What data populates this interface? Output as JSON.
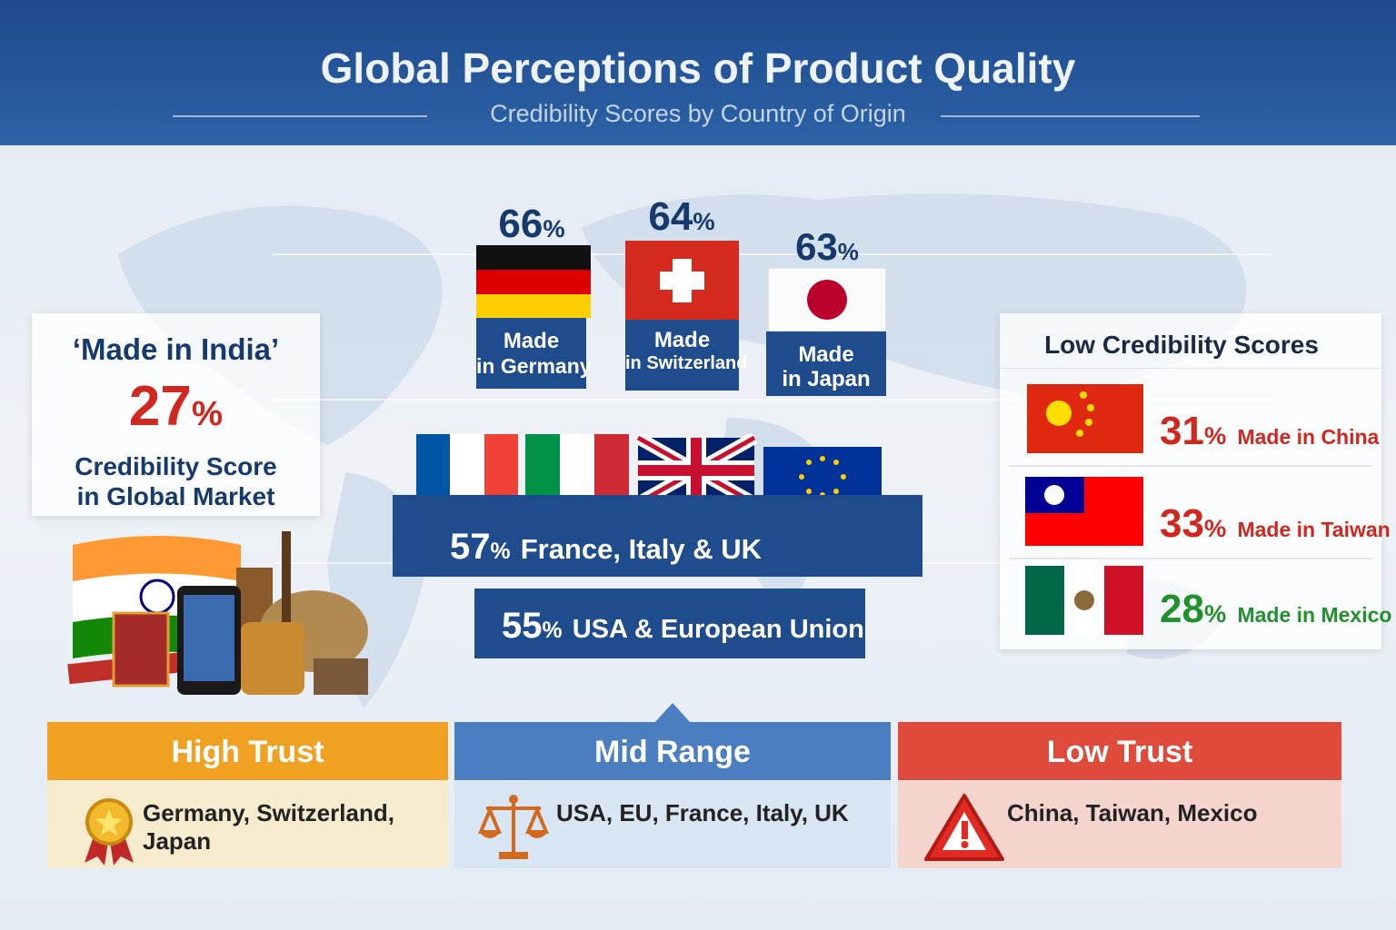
{
  "header": {
    "title": "Global Perceptions of Product Quality",
    "subtitle": "Credibility Scores by Country of Origin"
  },
  "india": {
    "label": "‘Made in India’",
    "score": 27,
    "unit": "%",
    "caption_lines": [
      "Credibility Score",
      "in Global Market"
    ]
  },
  "top_countries": [
    {
      "score": 66,
      "unit": "%",
      "label_lines": [
        "Made",
        "in Germany"
      ]
    },
    {
      "score": 64,
      "unit": "%",
      "label_lines": [
        "Made",
        "in Switzerland"
      ]
    },
    {
      "score": 63,
      "unit": "%",
      "label_lines": [
        "Made",
        "in Japan"
      ]
    }
  ],
  "mid_groups": [
    {
      "score": 57,
      "unit": "%",
      "label": "France, Italy & UK"
    },
    {
      "score": 55,
      "unit": "%",
      "label": "USA & European Union"
    }
  ],
  "low_panel": {
    "title": "Low Credibility Scores",
    "items": [
      {
        "score": 31,
        "unit": "%",
        "label": "Made in China"
      },
      {
        "score": 33,
        "unit": "%",
        "label": "Made in Taiwan"
      },
      {
        "score": 28,
        "unit": "%",
        "label": "Made in Mexico"
      }
    ]
  },
  "tiers": [
    {
      "title": "High Trust",
      "countries": "Germany, Switzerland, Japan"
    },
    {
      "title": "Mid Range",
      "countries": "USA, EU, France, Italy, UK"
    },
    {
      "title": "Low Trust",
      "countries": "China, Taiwan, Mexico"
    }
  ]
}
